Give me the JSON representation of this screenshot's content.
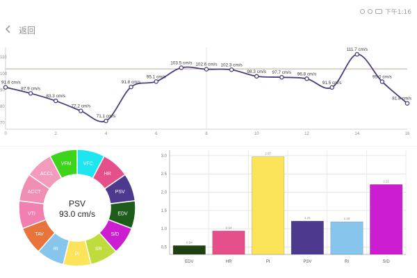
{
  "status_bar": {
    "time": "下午1:16",
    "icons": [
      "clock-icon",
      "alarm-icon",
      "battery-icon"
    ]
  },
  "app_bar": {
    "title": "返回",
    "back_icon": "back-arrow-icon"
  },
  "line_chart": {
    "x_ticks": [
      "0",
      "2",
      "4",
      "6",
      "8",
      "10",
      "12",
      "14",
      "16"
    ],
    "y_ticks": [
      "70",
      "80",
      "90",
      "100",
      "110"
    ],
    "line_color": "#4a3b7c",
    "ref_line_color": "#b9a99a"
  },
  "donut": {
    "center_label": "PSV",
    "center_value": "93.0 cm/s",
    "segments": [
      {
        "label": "VFC",
        "color": "#1de6f0"
      },
      {
        "label": "HR",
        "color": "#e6508a"
      },
      {
        "label": "PSV",
        "color": "#4d3a8e"
      },
      {
        "label": "EDV",
        "color": "#1e5c1b"
      },
      {
        "label": "S/D",
        "color": "#cc1ed0"
      },
      {
        "label": "SR",
        "color": "#bedc3c"
      },
      {
        "label": "PI",
        "color": "#fbe35a"
      },
      {
        "label": "RI",
        "color": "#88c5ec"
      },
      {
        "label": "TAV",
        "color": "#e8743c"
      },
      {
        "label": "VTI",
        "color": "#f17faf"
      },
      {
        "label": "ACCT",
        "color": "#f08eb3"
      },
      {
        "label": "ACCL",
        "color": "#f39bbd"
      },
      {
        "label": "VFM",
        "color": "#3ed41c"
      }
    ]
  },
  "bar_chart_colors": [
    "#1f4010",
    "#e6508a",
    "#fbe35a",
    "#4d3a8e",
    "#88c5ec",
    "#cc1ed0"
  ],
  "chart_data": [
    {
      "type": "line",
      "x": [
        0,
        1,
        2,
        3,
        4,
        5,
        6,
        7,
        8,
        9,
        10,
        11,
        12,
        13,
        14,
        15,
        16
      ],
      "series": [
        {
          "values": [
            91.6,
            87.9,
            83.3,
            77.2,
            71.1,
            91.8,
            95.1,
            103.5,
            102.6,
            102.3,
            98.3,
            97.7,
            96.8,
            91.5,
            111.7,
            95.0,
            81.8
          ]
        }
      ],
      "data_labels": [
        "91.6 cm/s",
        "87.9 cm/s",
        "83.3 cm/s",
        "77.2 cm/s",
        "71.1 cm/s",
        "91.8 cm/s",
        "95.1 cm/s",
        "103.5 cm/s",
        "102.6 cm/s",
        "102.3 cm/s",
        "98.3 cm/s",
        "97.7 cm/s",
        "96.8 cm/s",
        "91.5 cm/s",
        "111.7 cm/s",
        "95.0 cm/s",
        "81.8 cm/s"
      ],
      "reference_line": 102.8,
      "xlim": [
        0,
        16
      ],
      "ylim": [
        66,
        116
      ],
      "grid": false
    },
    {
      "type": "bar",
      "categories": [
        "EDV",
        "HR",
        "PI",
        "PSV",
        "RI",
        "S/D"
      ],
      "values": [
        0.54,
        0.94,
        2.97,
        1.21,
        1.19,
        2.21
      ],
      "data_labels": [
        "0.54",
        "0.94",
        "2.97",
        "1.21",
        "1.19",
        "2.21"
      ],
      "y_ticks": [
        "0.5",
        "1.0",
        "1.5",
        "2.0",
        "2.5",
        "3.0"
      ],
      "ylim": [
        0.3,
        3.15
      ],
      "grid": true
    }
  ]
}
